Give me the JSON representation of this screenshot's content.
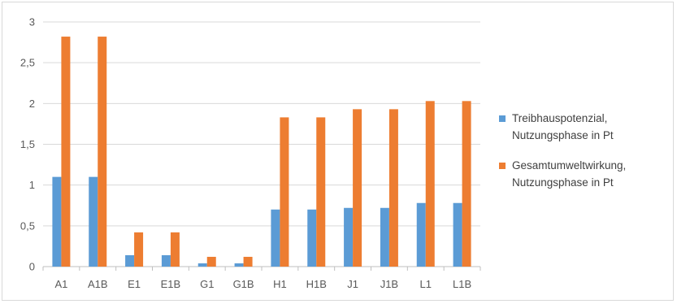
{
  "chart_data": {
    "type": "bar",
    "categories": [
      "A1",
      "A1B",
      "E1",
      "E1B",
      "G1",
      "G1B",
      "H1",
      "H1B",
      "J1",
      "J1B",
      "L1",
      "L1B"
    ],
    "series": [
      {
        "name": "Treibhauspotenzial, Nutzungsphase in Pt",
        "legend_lines": [
          "Treibhauspotenzial,",
          "Nutzungsphase in Pt"
        ],
        "color": "#5b9bd5",
        "values": [
          1.1,
          1.1,
          0.14,
          0.14,
          0.04,
          0.04,
          0.7,
          0.7,
          0.72,
          0.72,
          0.78,
          0.78
        ]
      },
      {
        "name": "Gesamtumweltwirkung, Nutzungsphase in Pt",
        "legend_lines": [
          "Gesamtumweltwirkung,",
          "Nutzungsphase in Pt"
        ],
        "color": "#ed7d31",
        "values": [
          2.82,
          2.82,
          0.42,
          0.42,
          0.12,
          0.12,
          1.83,
          1.83,
          1.93,
          1.93,
          2.03,
          2.03
        ]
      }
    ],
    "y_ticks": [
      {
        "value": 0,
        "label": "0"
      },
      {
        "value": 0.5,
        "label": "0,5"
      },
      {
        "value": 1,
        "label": "1"
      },
      {
        "value": 1.5,
        "label": "1,5"
      },
      {
        "value": 2,
        "label": "2"
      },
      {
        "value": 2.5,
        "label": "2,5"
      },
      {
        "value": 3,
        "label": "3"
      }
    ],
    "ylim": [
      0,
      3
    ],
    "grid": true,
    "legend_position": "right",
    "colors": {
      "grid": "#d9d9d9",
      "axis": "#bfbfbf"
    }
  }
}
